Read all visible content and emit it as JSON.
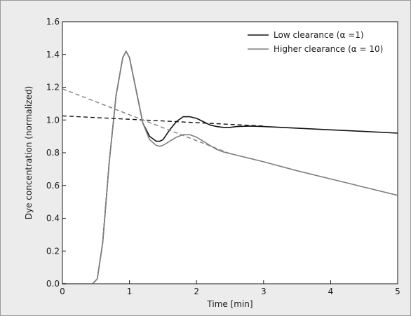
{
  "chart_data": {
    "type": "line",
    "title": "",
    "xlabel": "Time [min]",
    "ylabel": "Dye concentration (normalized)",
    "xlim": [
      0,
      5
    ],
    "ylim": [
      0,
      1.6
    ],
    "xticks": [
      "0",
      "1",
      "2",
      "3",
      "4",
      "5"
    ],
    "yticks": [
      "0.0",
      "0.2",
      "0.4",
      "0.6",
      "0.8",
      "1.0",
      "1.2",
      "1.4",
      "1.6"
    ],
    "grid": false,
    "legend_position": "top-right",
    "series": [
      {
        "name": "Low clearance (α =1)",
        "color": "#111111",
        "style": "solid",
        "x": [
          0,
          0.45,
          0.52,
          0.6,
          0.7,
          0.8,
          0.9,
          0.95,
          1.0,
          1.1,
          1.2,
          1.3,
          1.4,
          1.45,
          1.5,
          1.6,
          1.7,
          1.8,
          1.9,
          2.0,
          2.1,
          2.2,
          2.3,
          2.4,
          2.5,
          2.6,
          2.8,
          3.0,
          3.5,
          4.0,
          4.5,
          5.0
        ],
        "y": [
          0.0,
          0.0,
          0.03,
          0.25,
          0.75,
          1.15,
          1.38,
          1.42,
          1.38,
          1.18,
          0.98,
          0.9,
          0.87,
          0.87,
          0.88,
          0.94,
          0.99,
          1.02,
          1.02,
          1.01,
          0.99,
          0.97,
          0.96,
          0.955,
          0.955,
          0.96,
          0.963,
          0.96,
          0.95,
          0.94,
          0.93,
          0.92
        ]
      },
      {
        "name": "Higher clearance (α = 10)",
        "color": "#7f7f7f",
        "style": "solid",
        "x": [
          0,
          0.45,
          0.52,
          0.6,
          0.7,
          0.8,
          0.9,
          0.95,
          1.0,
          1.1,
          1.2,
          1.3,
          1.4,
          1.45,
          1.5,
          1.6,
          1.7,
          1.8,
          1.9,
          2.0,
          2.1,
          2.2,
          2.3,
          2.4,
          2.5,
          2.6,
          2.8,
          3.0,
          3.5,
          4.0,
          4.5,
          5.0
        ],
        "y": [
          0.0,
          0.0,
          0.03,
          0.25,
          0.75,
          1.15,
          1.38,
          1.42,
          1.38,
          1.18,
          0.98,
          0.88,
          0.845,
          0.84,
          0.845,
          0.87,
          0.895,
          0.91,
          0.91,
          0.895,
          0.87,
          0.845,
          0.82,
          0.805,
          0.795,
          0.785,
          0.765,
          0.745,
          0.69,
          0.64,
          0.59,
          0.54
        ]
      },
      {
        "name": "",
        "color": "#111111",
        "style": "dashed",
        "x": [
          0,
          3.0
        ],
        "y": [
          1.025,
          0.963
        ]
      },
      {
        "name": "",
        "color": "#7f7f7f",
        "style": "dashed",
        "x": [
          0,
          2.5
        ],
        "y": [
          1.19,
          0.795
        ]
      }
    ]
  }
}
